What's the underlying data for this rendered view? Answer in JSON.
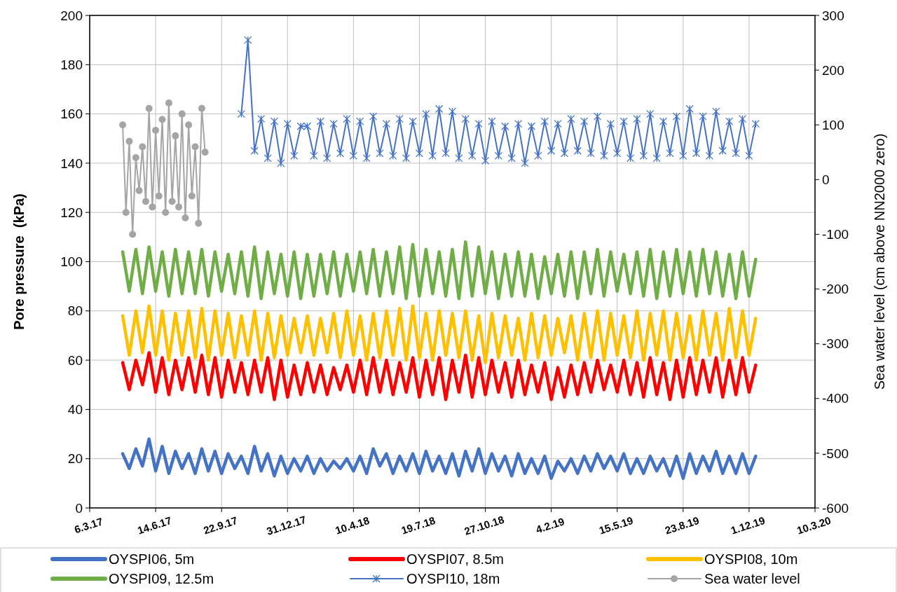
{
  "chart_data": {
    "type": "line",
    "ylabel": "Pore pressure  (kPa)",
    "y2label": "Sea water level (cm above NN2000 zero)",
    "ylim": [
      0,
      200
    ],
    "yticks": [
      0,
      20,
      40,
      60,
      80,
      100,
      120,
      140,
      160,
      180,
      200
    ],
    "y2lim": [
      -600,
      300
    ],
    "y2ticks": [
      -600,
      -500,
      -400,
      -300,
      -200,
      -100,
      0,
      100,
      200,
      300
    ],
    "xlim": [
      "2017-03-06",
      "2020-03-10"
    ],
    "xticks": [
      {
        "value": "2017-03-06",
        "label": "6.3.17"
      },
      {
        "value": "2017-06-14",
        "label": "14.6.17"
      },
      {
        "value": "2017-09-22",
        "label": "22.9.17"
      },
      {
        "value": "2017-12-31",
        "label": "31.12.17"
      },
      {
        "value": "2018-04-10",
        "label": "10.4.18"
      },
      {
        "value": "2018-07-19",
        "label": "19.7.18"
      },
      {
        "value": "2018-10-27",
        "label": "27.10.18"
      },
      {
        "value": "2019-02-04",
        "label": "4.2.19"
      },
      {
        "value": "2019-05-15",
        "label": "15.5.19"
      },
      {
        "value": "2019-08-23",
        "label": "23.8.19"
      },
      {
        "value": "2019-12-01",
        "label": "1.12.19"
      },
      {
        "value": "2020-03-10",
        "label": "10.3.20"
      }
    ],
    "grid": true,
    "legend": "bottom",
    "line_style": "solid",
    "x": [
      "2017-04-25",
      "2017-05-05",
      "2017-05-15",
      "2017-05-25",
      "2017-06-04",
      "2017-06-14",
      "2017-06-24",
      "2017-07-04",
      "2017-07-14",
      "2017-07-24",
      "2017-08-03",
      "2017-08-13",
      "2017-08-23",
      "2017-09-02",
      "2017-09-12",
      "2017-09-22",
      "2017-10-02",
      "2017-10-12",
      "2017-10-22",
      "2017-11-01",
      "2017-11-11",
      "2017-11-21",
      "2017-12-01",
      "2017-12-11",
      "2017-12-21",
      "2017-12-31",
      "2018-01-10",
      "2018-01-20",
      "2018-01-30",
      "2018-02-09",
      "2018-02-19",
      "2018-03-01",
      "2018-03-11",
      "2018-03-21",
      "2018-03-31",
      "2018-04-10",
      "2018-04-20",
      "2018-04-30",
      "2018-05-10",
      "2018-05-20",
      "2018-05-30",
      "2018-06-09",
      "2018-06-19",
      "2018-06-29",
      "2018-07-09",
      "2018-07-19",
      "2018-07-29",
      "2018-08-08",
      "2018-08-18",
      "2018-08-28",
      "2018-09-07",
      "2018-09-17",
      "2018-09-27",
      "2018-10-07",
      "2018-10-17",
      "2018-10-27",
      "2018-11-06",
      "2018-11-16",
      "2018-11-26",
      "2018-12-06",
      "2018-12-16",
      "2018-12-26",
      "2019-01-05",
      "2019-01-15",
      "2019-01-25",
      "2019-02-04",
      "2019-02-14",
      "2019-02-24",
      "2019-03-06",
      "2019-03-16",
      "2019-03-26",
      "2019-04-05",
      "2019-04-15",
      "2019-04-25",
      "2019-05-05",
      "2019-05-15",
      "2019-05-25",
      "2019-06-04",
      "2019-06-14",
      "2019-06-24",
      "2019-07-04",
      "2019-07-14",
      "2019-07-24",
      "2019-08-03",
      "2019-08-13",
      "2019-08-23",
      "2019-09-02",
      "2019-09-12",
      "2019-09-22",
      "2019-10-02",
      "2019-10-12",
      "2019-10-22",
      "2019-11-01",
      "2019-11-11",
      "2019-11-21",
      "2019-12-01",
      "2019-12-11"
    ],
    "series": [
      {
        "name": "OYSPI06, 5m",
        "color": "#4472c4",
        "marker": "none",
        "values": [
          22,
          16,
          24,
          17,
          28,
          15,
          25,
          14,
          23,
          16,
          22,
          14,
          24,
          15,
          23,
          14,
          22,
          16,
          21,
          14,
          25,
          15,
          22,
          13,
          21,
          14,
          20,
          15,
          21,
          14,
          20,
          15,
          19,
          16,
          20,
          15,
          21,
          14,
          24,
          17,
          22,
          14,
          21,
          15,
          22,
          14,
          23,
          15,
          21,
          14,
          22,
          13,
          23,
          15,
          24,
          14,
          22,
          15,
          21,
          13,
          22,
          14,
          20,
          14,
          21,
          12,
          19,
          15,
          20,
          14,
          21,
          15,
          22,
          16,
          21,
          15,
          22,
          14,
          20,
          14,
          21,
          15,
          20,
          13,
          21,
          12,
          22,
          14,
          21,
          15,
          23,
          14,
          21,
          14,
          22,
          14,
          21
        ]
      },
      {
        "name": "OYSPI07, 8.5m",
        "color": "#ff0000",
        "marker": "none",
        "values": [
          59,
          48,
          60,
          50,
          63,
          47,
          61,
          46,
          60,
          48,
          61,
          47,
          62,
          46,
          61,
          45,
          60,
          47,
          59,
          46,
          60,
          47,
          61,
          44,
          60,
          45,
          58,
          46,
          59,
          47,
          58,
          46,
          57,
          48,
          58,
          47,
          60,
          46,
          61,
          47,
          60,
          46,
          59,
          47,
          61,
          45,
          60,
          46,
          61,
          44,
          60,
          47,
          62,
          45,
          61,
          46,
          60,
          47,
          59,
          45,
          60,
          46,
          58,
          47,
          59,
          44,
          57,
          45,
          58,
          46,
          59,
          47,
          60,
          48,
          58,
          47,
          60,
          46,
          59,
          45,
          61,
          46,
          59,
          44,
          60,
          45,
          61,
          46,
          60,
          47,
          61,
          45,
          60,
          46,
          61,
          47,
          58
        ]
      },
      {
        "name": "OYSPI08, 10m",
        "color": "#ffc000",
        "marker": "none",
        "values": [
          78,
          62,
          80,
          63,
          82,
          62,
          80,
          60,
          79,
          62,
          80,
          61,
          81,
          60,
          80,
          62,
          79,
          61,
          78,
          62,
          80,
          60,
          79,
          61,
          78,
          62,
          77,
          63,
          78,
          62,
          77,
          63,
          79,
          61,
          80,
          62,
          78,
          60,
          79,
          61,
          80,
          62,
          81,
          60,
          82,
          61,
          79,
          60,
          80,
          62,
          79,
          61,
          80,
          60,
          78,
          59,
          79,
          61,
          78,
          62,
          77,
          60,
          79,
          61,
          78,
          62,
          77,
          63,
          78,
          60,
          79,
          61,
          80,
          60,
          79,
          62,
          78,
          61,
          80,
          60,
          79,
          62,
          80,
          60,
          79,
          61,
          78,
          60,
          80,
          62,
          79,
          60,
          81,
          61,
          80,
          62,
          77
        ]
      },
      {
        "name": "OYSPI09, 12.5m",
        "color": "#70ad47",
        "marker": "none",
        "values": [
          104,
          88,
          105,
          87,
          106,
          88,
          104,
          86,
          105,
          87,
          104,
          87,
          105,
          86,
          104,
          88,
          103,
          87,
          104,
          86,
          106,
          85,
          104,
          87,
          103,
          86,
          104,
          85,
          103,
          86,
          103,
          87,
          104,
          86,
          103,
          88,
          104,
          87,
          105,
          86,
          104,
          87,
          106,
          85,
          107,
          86,
          105,
          87,
          104,
          86,
          105,
          85,
          108,
          86,
          106,
          87,
          104,
          85,
          103,
          86,
          104,
          86,
          103,
          85,
          102,
          87,
          103,
          86,
          104,
          85,
          104,
          87,
          105,
          86,
          104,
          88,
          103,
          87,
          104,
          86,
          105,
          85,
          104,
          86,
          105,
          87,
          104,
          86,
          105,
          87,
          104,
          86,
          103,
          85,
          104,
          86,
          101
        ]
      },
      {
        "name": "OYSPI10, 18m",
        "color": "#4472c4",
        "marker": "cross",
        "values": [
          null,
          null,
          null,
          null,
          null,
          null,
          null,
          null,
          null,
          null,
          null,
          null,
          null,
          null,
          null,
          null,
          null,
          null,
          160,
          190,
          145,
          158,
          142,
          157,
          140,
          156,
          143,
          155,
          155,
          143,
          157,
          142,
          156,
          144,
          158,
          143,
          157,
          142,
          159,
          144,
          156,
          143,
          158,
          142,
          157,
          144,
          160,
          143,
          162,
          144,
          161,
          142,
          158,
          143,
          156,
          141,
          157,
          143,
          155,
          142,
          156,
          140,
          155,
          143,
          157,
          145,
          156,
          144,
          158,
          145,
          157,
          144,
          159,
          143,
          156,
          144,
          157,
          142,
          158,
          143,
          160,
          142,
          157,
          144,
          159,
          143,
          162,
          144,
          159,
          143,
          161,
          145,
          157,
          144,
          158,
          143,
          156
        ]
      },
      {
        "name": "Sea water level",
        "color": "#a5a5a5",
        "marker": "circle",
        "axis": "y2",
        "x": [
          "2017-04-25",
          "2017-04-30",
          "2017-05-05",
          "2017-05-10",
          "2017-05-15",
          "2017-05-20",
          "2017-05-25",
          "2017-05-30",
          "2017-06-04",
          "2017-06-09",
          "2017-06-14",
          "2017-06-19",
          "2017-06-24",
          "2017-06-29",
          "2017-07-04",
          "2017-07-09",
          "2017-07-14",
          "2017-07-19",
          "2017-07-24",
          "2017-07-29",
          "2017-08-03",
          "2017-08-08",
          "2017-08-13",
          "2017-08-18",
          "2017-08-23",
          "2017-08-28"
        ],
        "values": [
          100,
          -60,
          70,
          -100,
          40,
          -20,
          60,
          -40,
          130,
          -50,
          90,
          -30,
          110,
          -60,
          140,
          -40,
          80,
          -50,
          120,
          -70,
          100,
          -30,
          60,
          -80,
          130,
          50
        ]
      }
    ]
  }
}
